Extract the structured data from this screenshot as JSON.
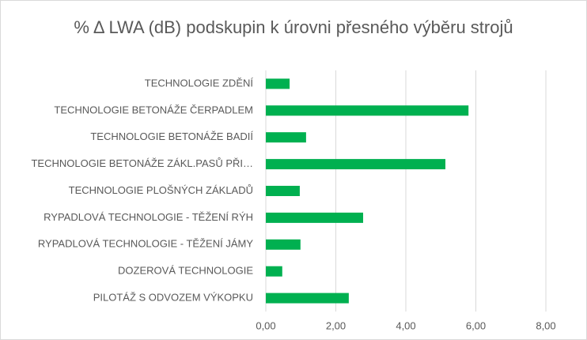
{
  "chart_data": {
    "type": "bar",
    "orientation": "horizontal",
    "title": "% Δ  LWA (dB) podskupin k úrovni přesného výběru strojů",
    "categories": [
      "TECHNOLOGIE ZDĚNÍ",
      "TECHNOLOGIE BETONÁŽE ČERPADLEM",
      "TECHNOLOGIE BETONÁŽE BADIÍ",
      "TECHNOLOGIE BETONÁŽE  ZÁKL.PASŮ PŘI…",
      "TECHNOLOGIE PLOŠNÝCH ZÁKLADŮ",
      "RYPADLOVÁ TECHNOLOGIE - TĚŽENÍ RÝH",
      "RYPADLOVÁ TECHNOLOGIE - TĚŽENÍ JÁMY",
      "DOZEROVÁ TECHNOLOGIE",
      "PILOTÁŽ S ODVOZEM VÝKOPKU"
    ],
    "values": [
      0.68,
      5.79,
      1.15,
      5.13,
      0.97,
      2.78,
      0.99,
      0.47,
      2.37
    ],
    "color": "#00b050",
    "xlim": [
      0,
      8
    ],
    "xticks": [
      {
        "value": 0,
        "label": "0,00"
      },
      {
        "value": 2,
        "label": "2,00"
      },
      {
        "value": 4,
        "label": "4,00"
      },
      {
        "value": 6,
        "label": "6,00"
      },
      {
        "value": 8,
        "label": "8,00"
      }
    ],
    "grid": true
  }
}
